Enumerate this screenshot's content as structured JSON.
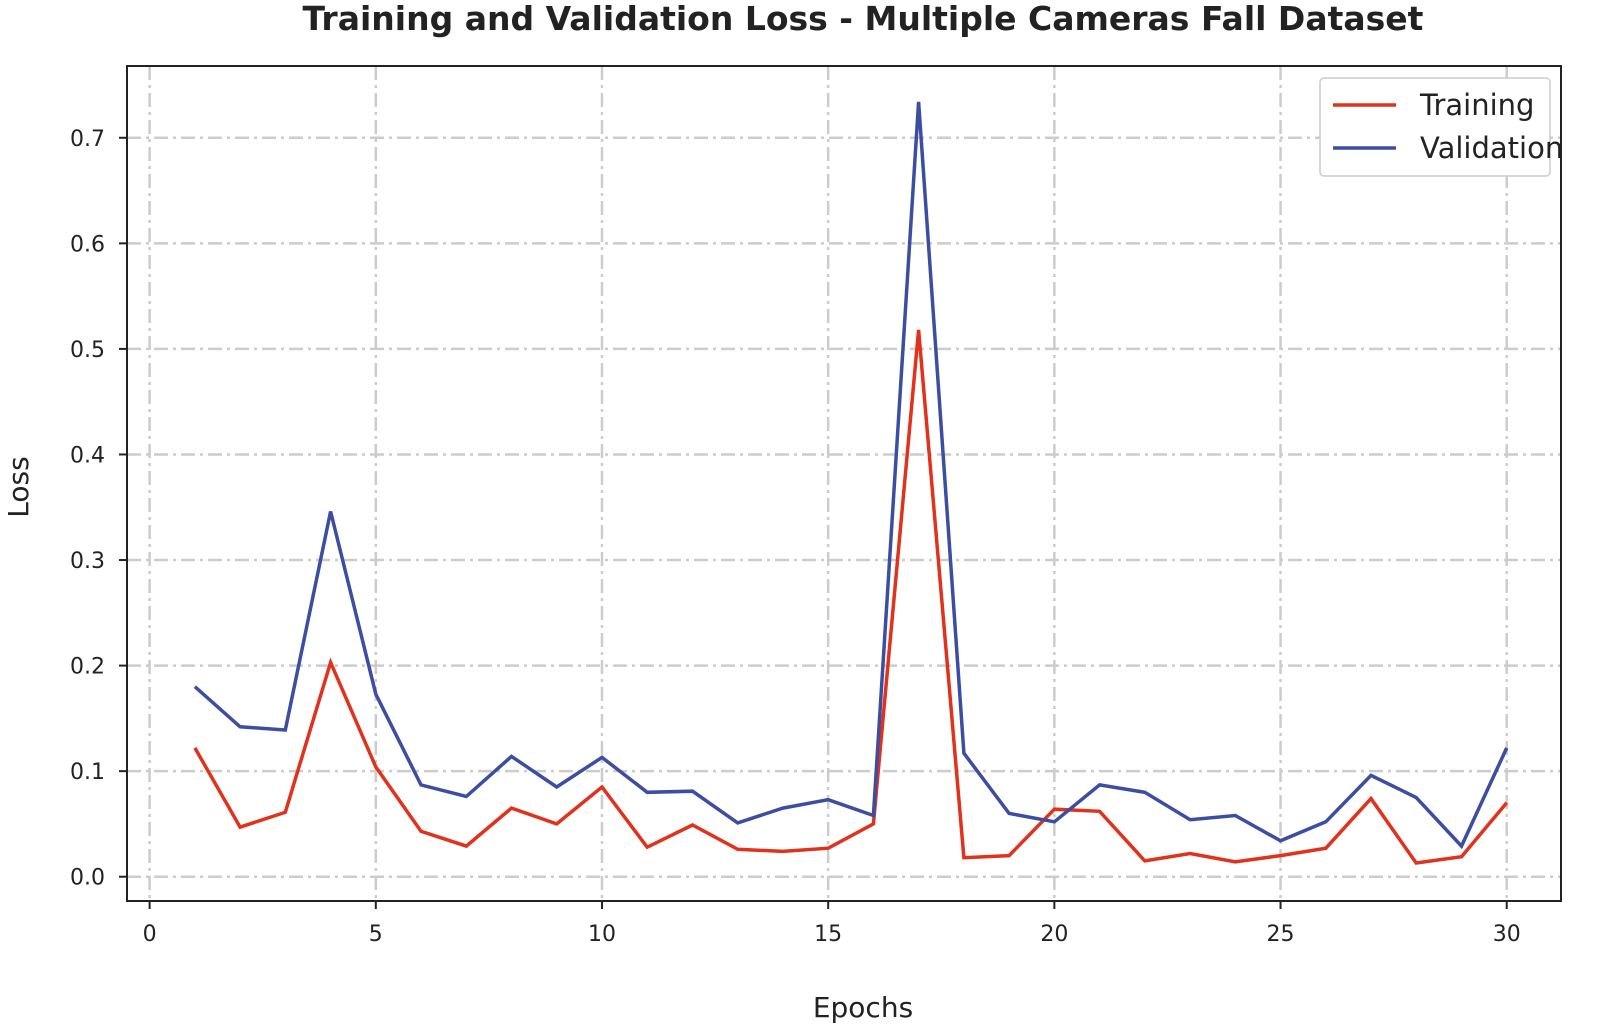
{
  "chart_data": {
    "type": "line",
    "title": "Training and Validation Loss - Multiple Cameras Fall Dataset",
    "xlabel": "Epochs",
    "ylabel": "Loss",
    "xlim": [
      -0.5,
      31.2
    ],
    "ylim": [
      -0.023,
      0.768
    ],
    "xticks": [
      0,
      5,
      10,
      15,
      20,
      25,
      30
    ],
    "xtick_labels": [
      "0",
      "5",
      "10",
      "15",
      "20",
      "25",
      "30"
    ],
    "yticks": [
      0.0,
      0.1,
      0.2,
      0.3,
      0.4,
      0.5,
      0.6,
      0.7
    ],
    "ytick_labels": [
      "0.0",
      "0.1",
      "0.2",
      "0.3",
      "0.4",
      "0.5",
      "0.6",
      "0.7"
    ],
    "grid": true,
    "legend_position": "top-right",
    "x": [
      1,
      2,
      3,
      4,
      5,
      6,
      7,
      8,
      9,
      10,
      11,
      12,
      13,
      14,
      15,
      16,
      17,
      18,
      19,
      20,
      21,
      22,
      23,
      24,
      25,
      26,
      27,
      28,
      29,
      30
    ],
    "series": [
      {
        "name": "Training",
        "color": "#e0321c",
        "values": [
          0.122,
          0.047,
          0.061,
          0.203,
          0.104,
          0.043,
          0.029,
          0.065,
          0.05,
          0.085,
          0.028,
          0.049,
          0.026,
          0.024,
          0.027,
          0.05,
          0.518,
          0.018,
          0.02,
          0.064,
          0.062,
          0.015,
          0.022,
          0.014,
          0.02,
          0.027,
          0.074,
          0.013,
          0.019,
          0.07
        ]
      },
      {
        "name": "Validation",
        "color": "#3c4ea1",
        "values": [
          0.18,
          0.142,
          0.139,
          0.346,
          0.173,
          0.087,
          0.076,
          0.114,
          0.085,
          0.113,
          0.08,
          0.081,
          0.051,
          0.065,
          0.073,
          0.058,
          0.734,
          0.117,
          0.06,
          0.052,
          0.087,
          0.08,
          0.054,
          0.058,
          0.034,
          0.052,
          0.096,
          0.075,
          0.029,
          0.122
        ]
      }
    ]
  }
}
